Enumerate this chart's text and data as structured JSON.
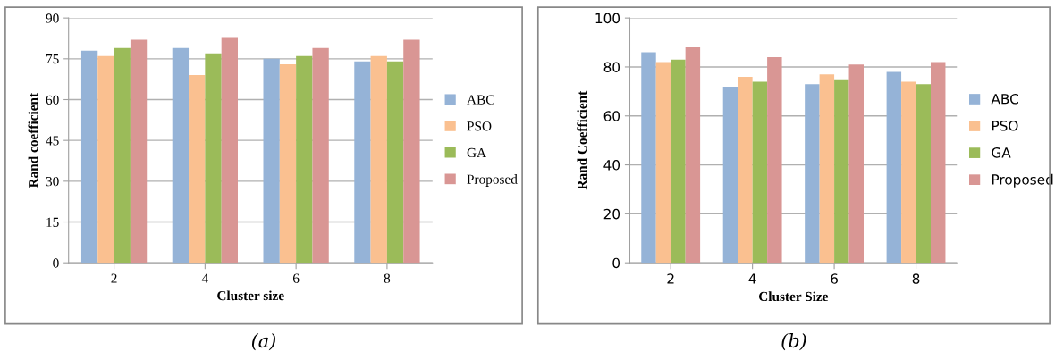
{
  "chart_data": [
    {
      "type": "bar",
      "xlabel": "Cluster size",
      "ylabel": "Rand coefficient",
      "categories": [
        "2",
        "4",
        "6",
        "8"
      ],
      "ylim": [
        0,
        90
      ],
      "yticks": [
        0,
        15,
        30,
        45,
        60,
        75,
        90
      ],
      "grid": "y",
      "legend": "right",
      "annotations": [
        "(a)"
      ],
      "series": [
        {
          "name": "ABC",
          "color": "#95b3d7",
          "values": [
            78,
            79,
            75,
            74
          ]
        },
        {
          "name": "PSO",
          "color": "#fac090",
          "values": [
            76,
            69,
            73,
            76
          ]
        },
        {
          "name": "GA",
          "color": "#9bbb59",
          "values": [
            79,
            77,
            76,
            74
          ]
        },
        {
          "name": "Proposed",
          "color": "#d99694",
          "values": [
            82,
            83,
            79,
            82
          ]
        }
      ]
    },
    {
      "type": "bar",
      "xlabel": "Cluster Size",
      "ylabel": "Rand Coefficient",
      "categories": [
        "2",
        "4",
        "6",
        "8"
      ],
      "ylim": [
        0,
        100
      ],
      "yticks": [
        0,
        20,
        40,
        60,
        80,
        100
      ],
      "grid": "y",
      "legend": "right",
      "annotations": [
        "(b)"
      ],
      "series": [
        {
          "name": "ABC",
          "color": "#95b3d7",
          "values": [
            86,
            72,
            73,
            78
          ]
        },
        {
          "name": "PSO",
          "color": "#fac090",
          "values": [
            82,
            76,
            77,
            74
          ]
        },
        {
          "name": "GA",
          "color": "#9bbb59",
          "values": [
            83,
            74,
            75,
            73
          ]
        },
        {
          "name": "Proposed",
          "color": "#d99694",
          "values": [
            88,
            84,
            81,
            82
          ]
        }
      ]
    }
  ]
}
